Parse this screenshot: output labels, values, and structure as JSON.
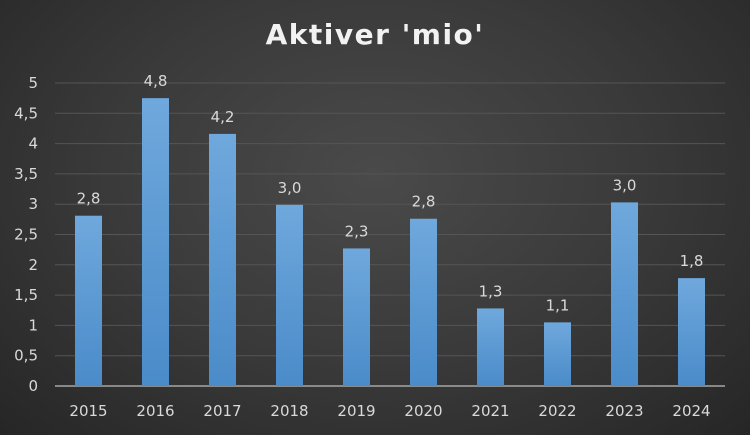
{
  "chart_data": {
    "type": "bar",
    "title": "Aktiver 'mio'",
    "categories": [
      "2015",
      "2016",
      "2017",
      "2018",
      "2019",
      "2020",
      "2021",
      "2022",
      "2023",
      "2024"
    ],
    "values": [
      2.81,
      4.75,
      4.16,
      2.99,
      2.27,
      2.76,
      1.28,
      1.05,
      3.03,
      1.78
    ],
    "data_labels": [
      "2,8",
      "4,8",
      "4,2",
      "3,0",
      "2,3",
      "2,8",
      "1,3",
      "1,1",
      "3,0",
      "1,8"
    ],
    "y_ticks": [
      "0",
      "0,5",
      "1",
      "1,5",
      "2",
      "2,5",
      "3",
      "3,5",
      "4",
      "4,5",
      "5"
    ],
    "ylim": [
      0,
      5
    ],
    "xlabel": "",
    "ylabel": "",
    "grid": true,
    "colors": {
      "bar_top": "#6fa8dc",
      "bar_bottom": "#4a8bc9",
      "background": "#3a3a3a",
      "text": "#d9d9d9"
    }
  }
}
